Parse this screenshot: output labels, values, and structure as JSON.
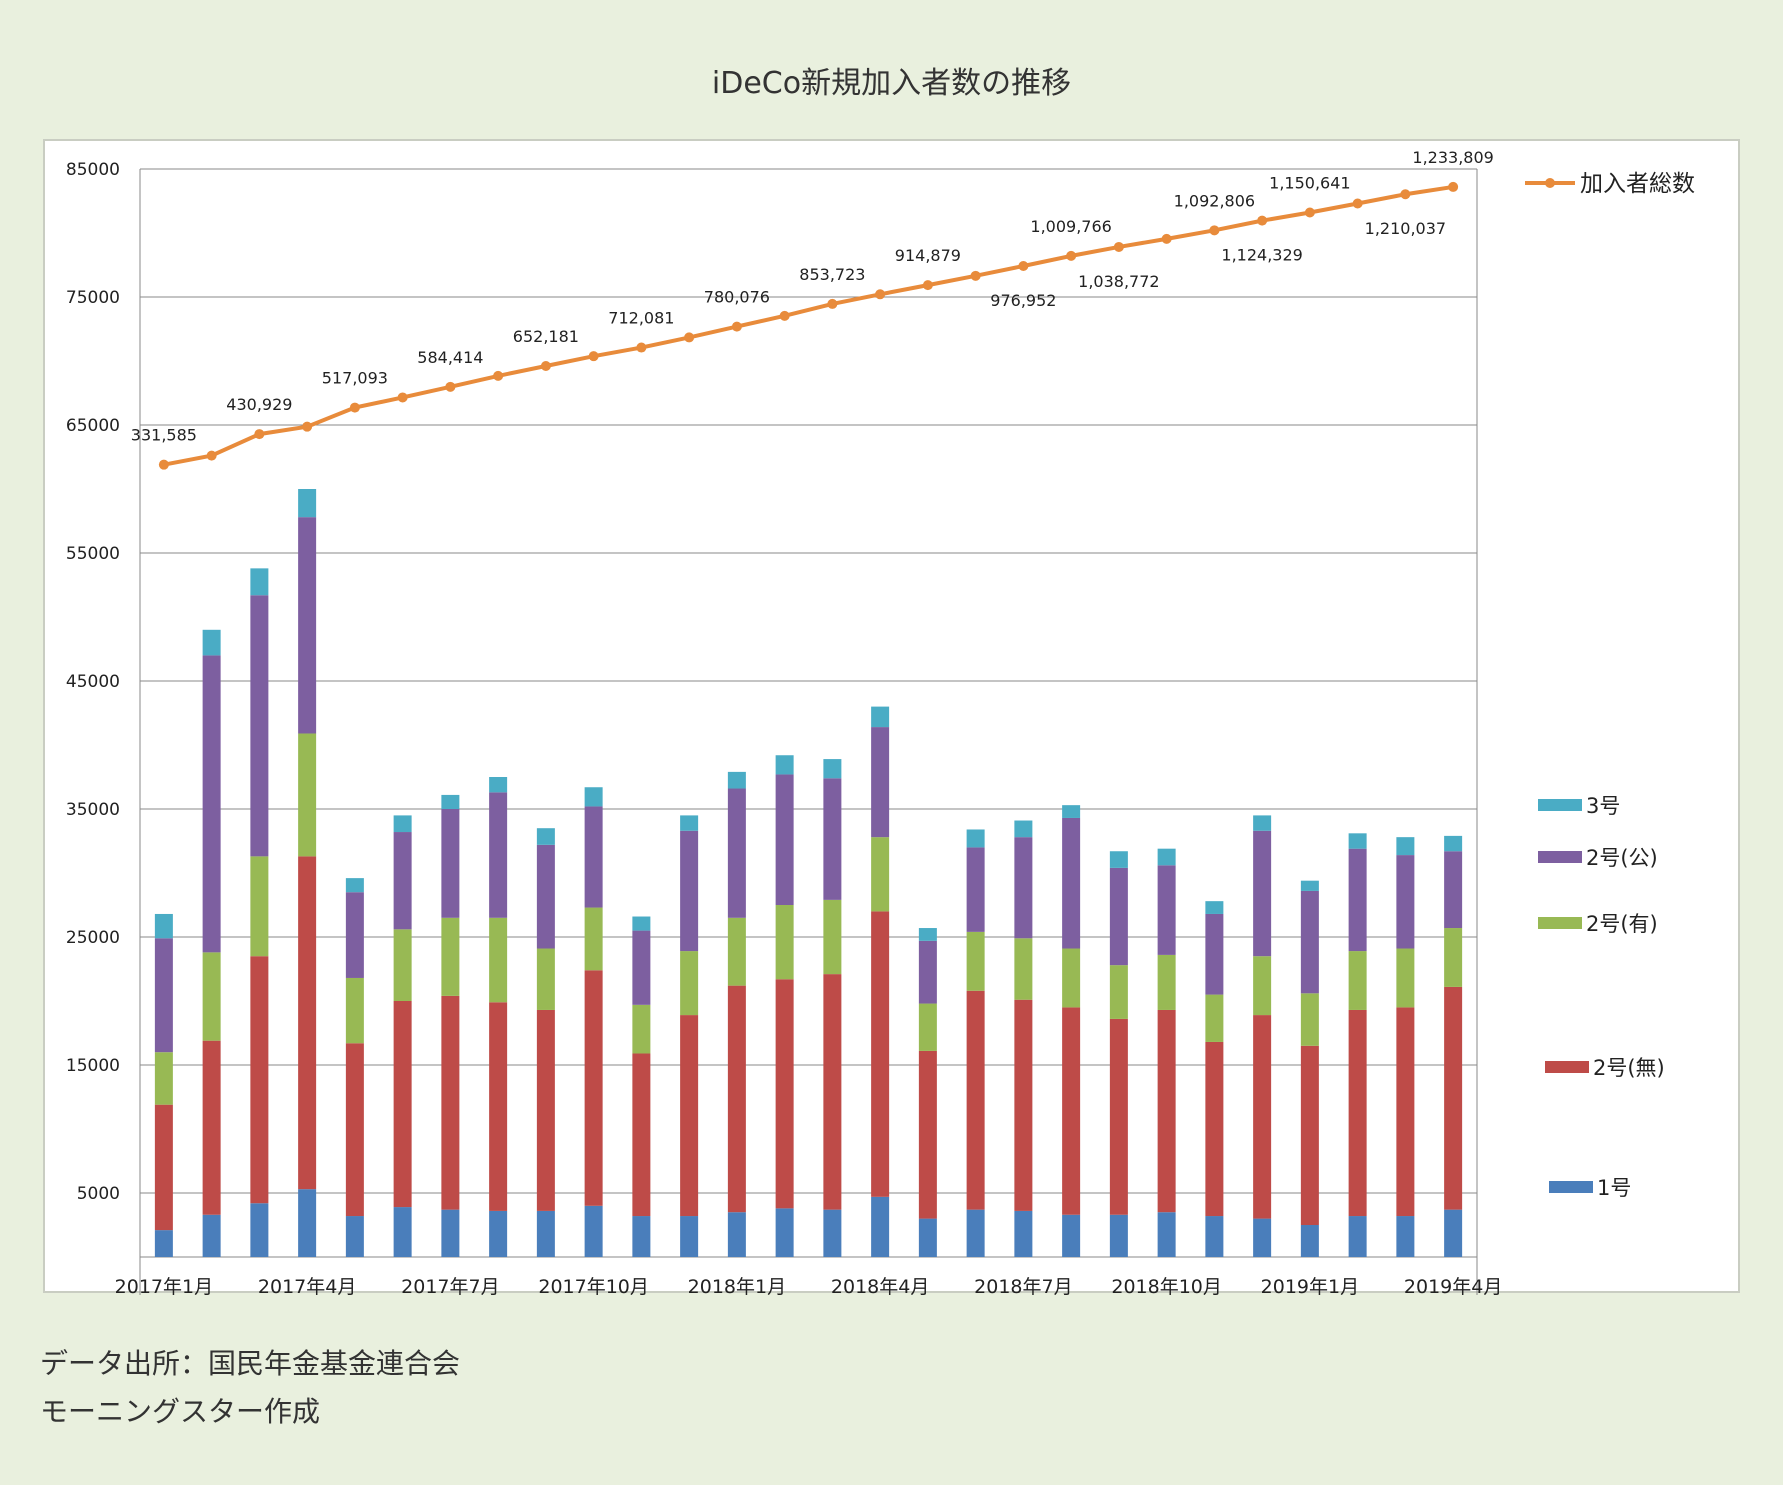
{
  "title": "iDeCo新規加入者数の推移",
  "notes": [
    "データ出所：国民年金基金連合会",
    "モーニングスター作成"
  ],
  "chart_data": {
    "type": "bar",
    "stacked": true,
    "grid": true,
    "ylim": [
      -5000,
      85000
    ],
    "yticks": [
      85000,
      75000,
      65000,
      55000,
      45000,
      35000,
      25000,
      15000,
      5000,
      -5000
    ],
    "categories": [
      "2017年1月",
      "2017年2月",
      "2017年3月",
      "2017年4月",
      "2017年5月",
      "2017年6月",
      "2017年7月",
      "2017年8月",
      "2017年9月",
      "2017年10月",
      "2017年11月",
      "2017年12月",
      "2018年1月",
      "2018年2月",
      "2018年3月",
      "2018年4月",
      "2018年5月",
      "2018年6月",
      "2018年7月",
      "2018年8月",
      "2018年9月",
      "2018年10月",
      "2018年11月",
      "2018年12月",
      "2019年1月",
      "2019年2月",
      "2019年3月",
      "2019年4月"
    ],
    "xtick_labels": [
      "2017年1月",
      "2017年4月",
      "2017年7月",
      "2017年10月",
      "2018年1月",
      "2018年4月",
      "2018年7月",
      "2018年10月",
      "2019年1月",
      "2019年4月"
    ],
    "series": [
      {
        "name": "1号",
        "color": "#4a7ebb",
        "values": [
          2100,
          3300,
          4200,
          5300,
          3200,
          3900,
          3700,
          3600,
          3600,
          4000,
          3200,
          3200,
          3500,
          3800,
          3700,
          4700,
          3000,
          3700,
          3600,
          3300,
          3300,
          3500,
          3200,
          3000,
          2500,
          3200,
          3200,
          3700
        ]
      },
      {
        "name": "2号(無)",
        "color": "#be4b48",
        "values": [
          9800,
          13600,
          19300,
          26000,
          13500,
          16100,
          16700,
          16300,
          15700,
          18400,
          12700,
          15700,
          17700,
          17900,
          18400,
          22300,
          13100,
          17100,
          16500,
          16200,
          15300,
          15800,
          13600,
          15900,
          14000,
          16100,
          16300,
          17400
        ]
      },
      {
        "name": "2号(有)",
        "color": "#98b954",
        "values": [
          4100,
          6900,
          7800,
          9600,
          5100,
          5600,
          6100,
          6600,
          4800,
          4900,
          3800,
          5000,
          5300,
          5800,
          5800,
          5800,
          3700,
          4600,
          4800,
          4600,
          4200,
          4300,
          3700,
          4600,
          4100,
          4600,
          4600,
          4600
        ]
      },
      {
        "name": "2号(公)",
        "color": "#7d5fa0",
        "values": [
          8900,
          23200,
          20400,
          16900,
          6700,
          7600,
          8500,
          9800,
          8100,
          7900,
          5800,
          9400,
          10100,
          10200,
          9500,
          8600,
          4900,
          6600,
          7900,
          10200,
          7600,
          7000,
          6300,
          9800,
          8000,
          8000,
          7300,
          6000
        ]
      },
      {
        "name": "3号",
        "color": "#4aacc5",
        "values": [
          1900,
          2000,
          2100,
          2200,
          1100,
          1300,
          1100,
          1200,
          1300,
          1500,
          1100,
          1200,
          1300,
          1500,
          1500,
          1600,
          1000,
          1400,
          1300,
          1000,
          1300,
          1300,
          1000,
          1200,
          800,
          1200,
          1400,
          1200
        ]
      }
    ],
    "line": {
      "name": "加入者総数",
      "color": "#e88b3b",
      "values": [
        331585,
        361000,
        430929,
        455000,
        517093,
        550000,
        584414,
        620000,
        652181,
        684000,
        712081,
        745000,
        780076,
        815000,
        853723,
        885000,
        914879,
        945000,
        976952,
        1009766,
        1038772,
        1065000,
        1092806,
        1124329,
        1150641,
        1180000,
        1210037,
        1233809
      ],
      "labels": [
        "331,585",
        "",
        "430,929",
        "",
        "517,093",
        "",
        "584,414",
        "",
        "652,181",
        "",
        "712,081",
        "",
        "780,076",
        "",
        "853,723",
        "",
        "914,879",
        "",
        "976,952",
        "1,009,766",
        "1,038,772",
        "",
        "1,092,806",
        "1,124,329",
        "1,150,641",
        "",
        "1,210,037",
        "1,233,809"
      ]
    },
    "legend": {
      "position": "right",
      "entries": [
        "加入者総数",
        "3号",
        "2号(公)",
        "2号(有)",
        "2号(無)",
        "1号"
      ]
    }
  }
}
